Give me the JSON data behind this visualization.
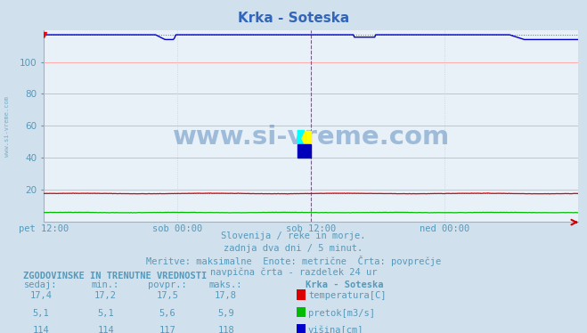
{
  "title": "Krka - Soteska",
  "bg_color": "#d0e0ec",
  "plot_bg_color": "#e8f0f8",
  "grid_color_h": "#ffaaaa",
  "grid_color_v": "#ffbbbb",
  "ylim": [
    0,
    120
  ],
  "yticks": [
    20,
    40,
    60,
    80,
    100
  ],
  "xlabel_ticks": [
    "pet 12:00",
    "sob 00:00",
    "sob 12:00",
    "ned 00:00"
  ],
  "xlabel_tick_pos": [
    0.0,
    0.25,
    0.5,
    0.75
  ],
  "temp_color": "#dd0000",
  "pretok_color": "#00bb00",
  "visina_color": "#0000cc",
  "vline_color": "#ff00ff",
  "vline2_color": "#aaaacc",
  "watermark": "www.si-vreme.com",
  "subtitle1": "Slovenija / reke in morje.",
  "subtitle2": "zadnja dva dni / 5 minut.",
  "subtitle3": "Meritve: maksimalne  Enote: metrične  Črta: povprečje",
  "subtitle4": "navpična črta - razdelek 24 ur",
  "table_header": "ZGODOVINSKE IN TRENUTNE VREDNOSTI",
  "col_sedaj": "sedaj:",
  "col_min": "min.:",
  "col_povpr": "povpr.:",
  "col_maks": "maks.:",
  "col_station": "Krka - Soteska",
  "row1_label": "temperatura[C]",
  "row2_label": "pretok[m3/s]",
  "row3_label": "višina[cm]",
  "text_color": "#5599bb",
  "title_color": "#3366bb",
  "left_label": "www.si-vreme.com",
  "n_points": 576
}
